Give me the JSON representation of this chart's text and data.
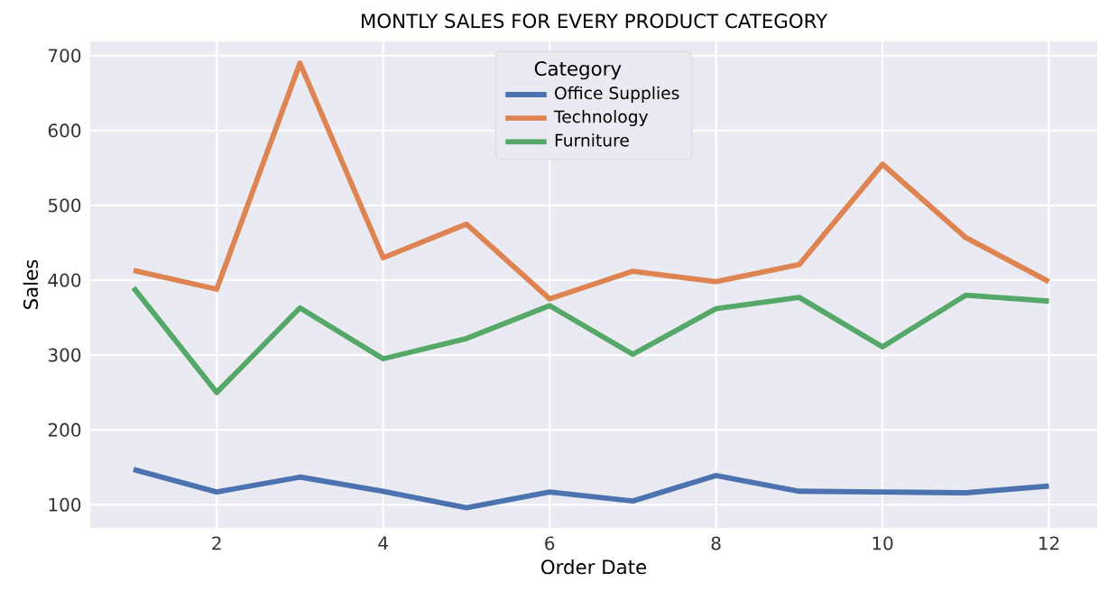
{
  "chart_data": {
    "type": "line",
    "title": "MONTLY SALES FOR EVERY PRODUCT CATEGORY",
    "xlabel": "Order Date",
    "ylabel": "Sales",
    "legend_title": "Category",
    "x": [
      1,
      2,
      3,
      4,
      5,
      6,
      7,
      8,
      9,
      10,
      11,
      12
    ],
    "series": [
      {
        "name": "Office Supplies",
        "color": "#4c72b0",
        "values": [
          147,
          117,
          137,
          118,
          96,
          117,
          105,
          139,
          118,
          117,
          116,
          125
        ]
      },
      {
        "name": "Technology",
        "color": "#dd8452",
        "values": [
          413,
          388,
          690,
          430,
          475,
          375,
          412,
          398,
          421,
          555,
          457,
          398
        ]
      },
      {
        "name": "Furniture",
        "color": "#55a868",
        "values": [
          390,
          250,
          363,
          295,
          322,
          366,
          301,
          362,
          377,
          311,
          380,
          372
        ]
      }
    ],
    "xlim": [
      0.48,
      12.58
    ],
    "xticks": [
      2,
      4,
      6,
      8,
      10,
      12
    ],
    "ylim": [
      69,
      719
    ],
    "yticks": [
      100,
      200,
      300,
      400,
      500,
      600,
      700
    ],
    "grid": true,
    "legend": "top",
    "marker": "none",
    "line_style": "solid"
  }
}
